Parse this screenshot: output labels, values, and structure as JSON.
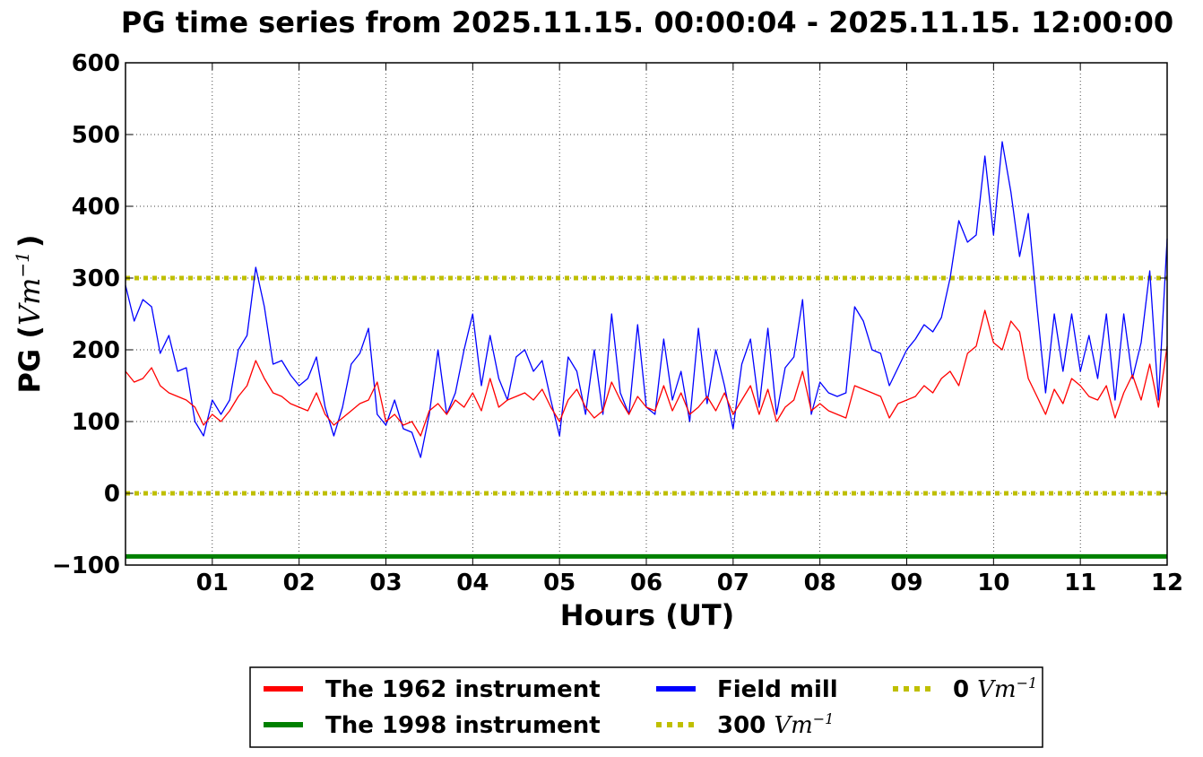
{
  "chart_data": {
    "type": "line",
    "title": "PG time series from 2025.11.15. 00:00:04 - 2025.11.15. 12:00:00",
    "xlabel": "Hours (UT)",
    "ylabel_prefix": "PG (",
    "ylabel_unit": "Vm",
    "ylabel_exp": "−1",
    "ylabel_suffix": ")",
    "xlim": [
      0,
      12
    ],
    "ylim": [
      -100,
      600
    ],
    "grid": true,
    "legend_position": "bottom-center",
    "x_ticks": [
      {
        "value": 1,
        "label": "01"
      },
      {
        "value": 2,
        "label": "02"
      },
      {
        "value": 3,
        "label": "03"
      },
      {
        "value": 4,
        "label": "04"
      },
      {
        "value": 5,
        "label": "05"
      },
      {
        "value": 6,
        "label": "06"
      },
      {
        "value": 7,
        "label": "07"
      },
      {
        "value": 8,
        "label": "08"
      },
      {
        "value": 9,
        "label": "09"
      },
      {
        "value": 10,
        "label": "10"
      },
      {
        "value": 11,
        "label": "11"
      },
      {
        "value": 12,
        "label": "12"
      }
    ],
    "y_ticks": [
      {
        "value": -100,
        "label": "−100"
      },
      {
        "value": 0,
        "label": "0"
      },
      {
        "value": 100,
        "label": "100"
      },
      {
        "value": 200,
        "label": "200"
      },
      {
        "value": 300,
        "label": "300"
      },
      {
        "value": 400,
        "label": "400"
      },
      {
        "value": 500,
        "label": "500"
      },
      {
        "value": 600,
        "label": "600"
      }
    ],
    "series": [
      {
        "name": "The 1962 instrument",
        "color": "#ff0000",
        "style": "solid",
        "x": [
          0,
          0.1,
          0.2,
          0.3,
          0.4,
          0.5,
          0.6,
          0.7,
          0.8,
          0.9,
          1.0,
          1.1,
          1.2,
          1.3,
          1.4,
          1.5,
          1.6,
          1.7,
          1.8,
          1.9,
          2.0,
          2.1,
          2.2,
          2.3,
          2.4,
          2.5,
          2.6,
          2.7,
          2.8,
          2.9,
          3.0,
          3.1,
          3.2,
          3.3,
          3.4,
          3.5,
          3.6,
          3.7,
          3.8,
          3.9,
          4.0,
          4.1,
          4.2,
          4.3,
          4.4,
          4.5,
          4.6,
          4.7,
          4.8,
          4.9,
          5.0,
          5.1,
          5.2,
          5.3,
          5.4,
          5.5,
          5.6,
          5.7,
          5.8,
          5.9,
          6.0,
          6.1,
          6.2,
          6.3,
          6.4,
          6.5,
          6.6,
          6.7,
          6.8,
          6.9,
          7.0,
          7.1,
          7.2,
          7.3,
          7.4,
          7.5,
          7.6,
          7.7,
          7.8,
          7.9,
          8.0,
          8.1,
          8.2,
          8.3,
          8.4,
          8.5,
          8.6,
          8.7,
          8.8,
          8.9,
          9.0,
          9.1,
          9.2,
          9.3,
          9.4,
          9.5,
          9.6,
          9.7,
          9.8,
          9.9,
          10.0,
          10.1,
          10.2,
          10.3,
          10.4,
          10.5,
          10.6,
          10.7,
          10.8,
          10.9,
          11.0,
          11.1,
          11.2,
          11.3,
          11.4,
          11.5,
          11.6,
          11.7,
          11.8,
          11.9,
          12.0
        ],
        "y": [
          170,
          155,
          160,
          175,
          150,
          140,
          135,
          130,
          120,
          95,
          110,
          100,
          115,
          135,
          150,
          185,
          160,
          140,
          135,
          125,
          120,
          115,
          140,
          110,
          95,
          105,
          115,
          125,
          130,
          155,
          100,
          110,
          95,
          100,
          80,
          115,
          125,
          110,
          130,
          120,
          140,
          115,
          160,
          120,
          130,
          135,
          140,
          130,
          145,
          120,
          100,
          130,
          145,
          120,
          105,
          115,
          155,
          130,
          110,
          135,
          120,
          115,
          150,
          115,
          140,
          110,
          120,
          135,
          115,
          140,
          110,
          130,
          150,
          110,
          145,
          100,
          120,
          130,
          170,
          115,
          125,
          115,
          110,
          105,
          150,
          145,
          140,
          135,
          105,
          125,
          130,
          135,
          150,
          140,
          160,
          170,
          150,
          195,
          205,
          255,
          210,
          200,
          240,
          225,
          160,
          135,
          110,
          145,
          125,
          160,
          150,
          135,
          130,
          150,
          105,
          140,
          165,
          130,
          180,
          120,
          205
        ]
      },
      {
        "name": "Field mill",
        "color": "#0000ff",
        "style": "solid",
        "x": [
          0,
          0.1,
          0.2,
          0.3,
          0.4,
          0.5,
          0.6,
          0.7,
          0.8,
          0.9,
          1.0,
          1.1,
          1.2,
          1.3,
          1.4,
          1.5,
          1.6,
          1.7,
          1.8,
          1.9,
          2.0,
          2.1,
          2.2,
          2.3,
          2.4,
          2.5,
          2.6,
          2.7,
          2.8,
          2.9,
          3.0,
          3.1,
          3.2,
          3.3,
          3.4,
          3.5,
          3.6,
          3.7,
          3.8,
          3.9,
          4.0,
          4.1,
          4.2,
          4.3,
          4.4,
          4.5,
          4.6,
          4.7,
          4.8,
          4.9,
          5.0,
          5.1,
          5.2,
          5.3,
          5.4,
          5.5,
          5.6,
          5.7,
          5.8,
          5.9,
          6.0,
          6.1,
          6.2,
          6.3,
          6.4,
          6.5,
          6.6,
          6.7,
          6.8,
          6.9,
          7.0,
          7.1,
          7.2,
          7.3,
          7.4,
          7.5,
          7.6,
          7.7,
          7.8,
          7.9,
          8.0,
          8.1,
          8.2,
          8.3,
          8.4,
          8.5,
          8.6,
          8.7,
          8.8,
          8.9,
          9.0,
          9.1,
          9.2,
          9.3,
          9.4,
          9.5,
          9.6,
          9.7,
          9.8,
          9.9,
          10.0,
          10.1,
          10.2,
          10.3,
          10.4,
          10.5,
          10.6,
          10.7,
          10.8,
          10.9,
          11.0,
          11.1,
          11.2,
          11.3,
          11.4,
          11.5,
          11.6,
          11.7,
          11.8,
          11.9,
          12.0
        ],
        "y": [
          290,
          240,
          270,
          260,
          195,
          220,
          170,
          175,
          100,
          80,
          130,
          110,
          130,
          200,
          220,
          315,
          260,
          180,
          185,
          165,
          150,
          160,
          190,
          120,
          80,
          120,
          180,
          195,
          230,
          110,
          95,
          130,
          90,
          85,
          50,
          110,
          200,
          110,
          140,
          200,
          250,
          150,
          220,
          160,
          130,
          190,
          200,
          170,
          185,
          130,
          80,
          190,
          170,
          110,
          200,
          110,
          250,
          140,
          110,
          235,
          120,
          110,
          215,
          130,
          170,
          100,
          230,
          125,
          200,
          150,
          90,
          180,
          215,
          120,
          230,
          110,
          175,
          190,
          270,
          110,
          155,
          140,
          135,
          140,
          260,
          240,
          200,
          195,
          150,
          175,
          200,
          215,
          235,
          225,
          245,
          300,
          380,
          350,
          360,
          470,
          360,
          490,
          420,
          330,
          390,
          260,
          140,
          250,
          170,
          250,
          170,
          220,
          160,
          250,
          130,
          250,
          160,
          210,
          310,
          130,
          355
        ]
      },
      {
        "name": "The 1998 instrument",
        "color": "#008000",
        "style": "solid",
        "x": [
          0,
          12
        ],
        "y": [
          -88,
          -88
        ]
      },
      {
        "name": "300 Vm−1",
        "color": "#bfbf00",
        "style": "dotted",
        "x": [
          0,
          12
        ],
        "y": [
          300,
          300
        ]
      },
      {
        "name": "0 Vm−1",
        "color": "#bfbf00",
        "style": "dotted",
        "x": [
          0,
          12
        ],
        "y": [
          0,
          0
        ]
      }
    ],
    "legend": [
      {
        "prefix": "The 1962 instrument",
        "unit": "",
        "exp": "",
        "color": "#ff0000",
        "style": "solid"
      },
      {
        "prefix": "The 1998 instrument",
        "unit": "",
        "exp": "",
        "color": "#008000",
        "style": "solid"
      },
      {
        "prefix": "Field mill",
        "unit": "",
        "exp": "",
        "color": "#0000ff",
        "style": "solid"
      },
      {
        "prefix": "300 ",
        "unit": "Vm",
        "exp": "−1",
        "color": "#bfbf00",
        "style": "dotted"
      },
      {
        "prefix": "0 ",
        "unit": "Vm",
        "exp": "−1",
        "color": "#bfbf00",
        "style": "dotted"
      }
    ]
  }
}
